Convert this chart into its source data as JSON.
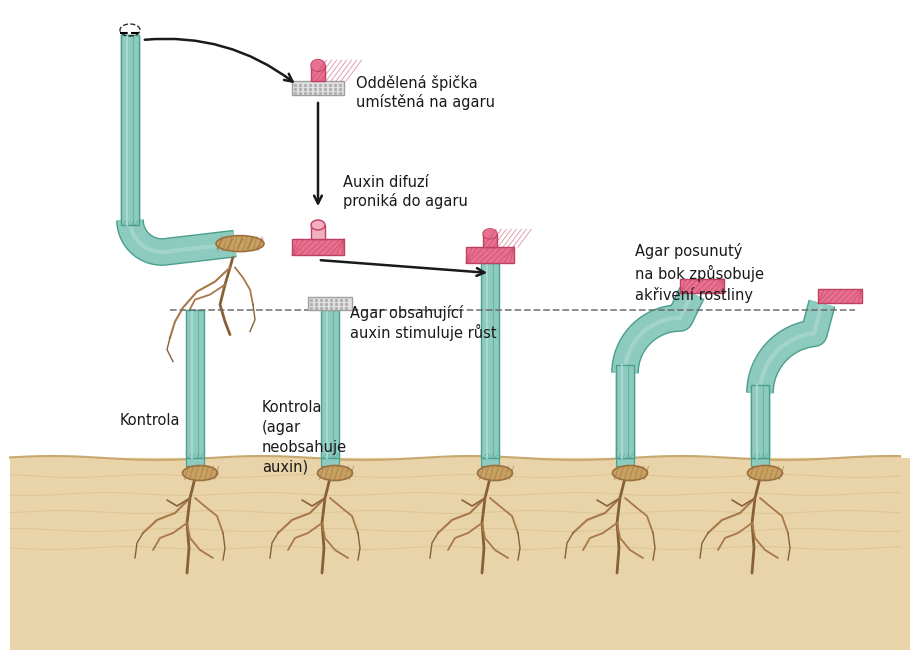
{
  "bg_color": "#ffffff",
  "soil_color": "#e8d4a8",
  "soil_edge_color": "#c8a870",
  "stem_green": "#8ecbbf",
  "stem_green_dark": "#4a9e8e",
  "stem_light": "#b8ddd6",
  "seed_brown": "#c8a060",
  "seed_brown_dark": "#9a7040",
  "root_color": "#a87848",
  "root_dark": "#886038",
  "pink_fill": "#e87090",
  "pink_dark": "#c04060",
  "pink_light": "#f0a0b8",
  "white_agar": "#e0e0e0",
  "white_agar_dark": "#a0a0a0",
  "arrow_color": "#1a1a1a",
  "text_color": "#1a1a1a",
  "dashed_color": "#666666",
  "label1": "Oddělená špička\numístěná na agaru",
  "label2": "Auxin difuzí\nproniká do agaru",
  "label3": "Agar obsahující\nauxin stimuluje růst",
  "label4": "Agar posunutý\nna bok způsobuje\nakřivení rostliny",
  "label_k1": "Kontrola",
  "label_k2": "Kontrola\n(agar\nneobsahuje\nauxin)"
}
